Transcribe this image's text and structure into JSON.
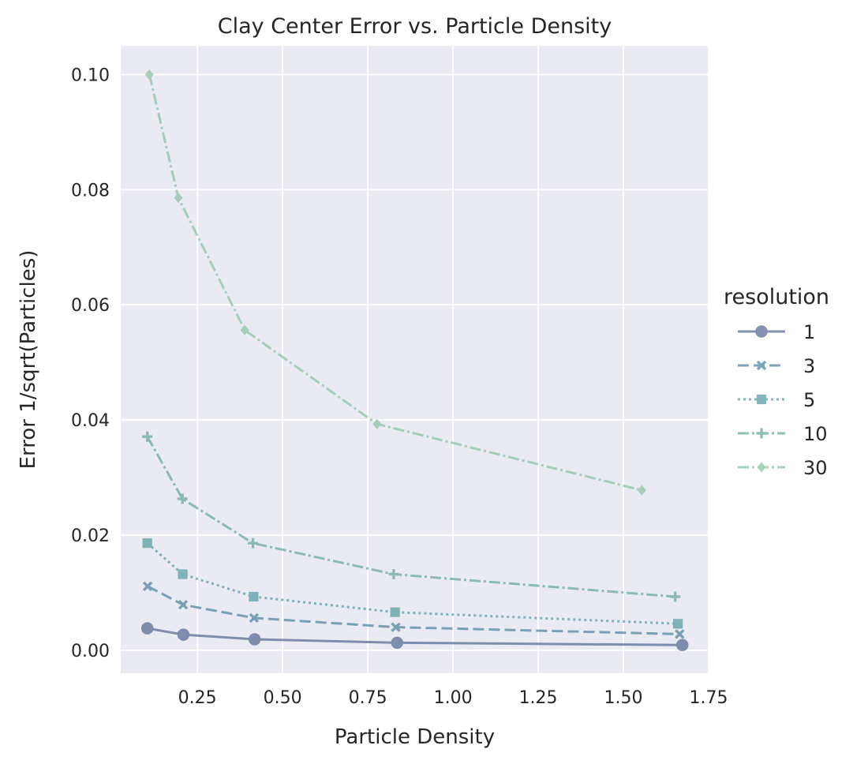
{
  "chart_data": {
    "type": "line",
    "title": "Clay Center Error vs. Particle Density",
    "xlabel": "Particle Density",
    "ylabel": "Error 1/sqrt(Particles)",
    "xlim": [
      0.025,
      1.75
    ],
    "ylim": [
      -0.004,
      0.105
    ],
    "xticks": [
      0.25,
      0.5,
      0.75,
      1.0,
      1.25,
      1.5,
      1.75
    ],
    "xtick_labels": [
      "0.25",
      "0.50",
      "0.75",
      "1.00",
      "1.25",
      "1.50",
      "1.75"
    ],
    "yticks": [
      0.0,
      0.02,
      0.04,
      0.06,
      0.08,
      0.1
    ],
    "ytick_labels": [
      "0.00",
      "0.02",
      "0.04",
      "0.06",
      "0.08",
      "0.10"
    ],
    "grid": true,
    "legend": {
      "title": "resolution",
      "placement": "right"
    },
    "series": [
      {
        "name": "1",
        "color": "#5a6f95",
        "dash": "solid",
        "marker": "circle",
        "x": [
          0.103,
          0.209,
          0.418,
          0.836,
          1.673
        ],
        "y": [
          0.0038,
          0.0027,
          0.0019,
          0.0013,
          0.0009
        ]
      },
      {
        "name": "3",
        "color": "#5588a3",
        "dash": "dashed",
        "marker": "x",
        "x": [
          0.104,
          0.208,
          0.416,
          0.832,
          1.665
        ],
        "y": [
          0.0111,
          0.0079,
          0.0056,
          0.004,
          0.0028
        ]
      },
      {
        "name": "5",
        "color": "#5c9fa5",
        "dash": "dotted",
        "marker": "square",
        "x": [
          0.103,
          0.207,
          0.415,
          0.83,
          1.66
        ],
        "y": [
          0.0186,
          0.0132,
          0.0093,
          0.0066,
          0.0046
        ]
      },
      {
        "name": "10",
        "color": "#6aaa9e",
        "dash": "dashdot",
        "marker": "plus",
        "x": [
          0.103,
          0.206,
          0.413,
          0.826,
          1.652
        ],
        "y": [
          0.0371,
          0.0263,
          0.0186,
          0.0132,
          0.0093
        ]
      },
      {
        "name": "30",
        "color": "#8cc4a4",
        "dash": "dashdot",
        "marker": "diamond",
        "x": [
          0.109,
          0.194,
          0.389,
          0.777,
          1.554
        ],
        "y": [
          0.1,
          0.0786,
          0.0556,
          0.0393,
          0.0278
        ]
      }
    ]
  }
}
